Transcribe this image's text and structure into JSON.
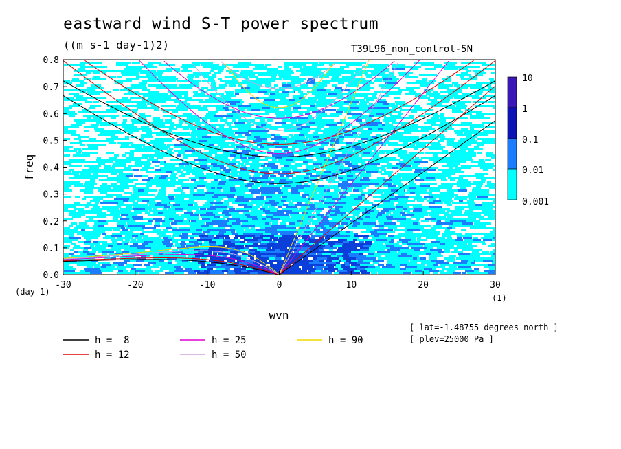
{
  "title": "eastward wind S-T power spectrum",
  "units": "((m s-1 day-1)2)",
  "run_label": "T39L96_non_control-5N",
  "notes": [
    "[ lat=-1.48755 degrees_north ]",
    "[ plev=25000 Pa ]"
  ],
  "chart_data": {
    "type": "heatmap",
    "xlabel": "wvn",
    "ylabel": "freq",
    "x_unit": "(1)",
    "y_unit": "(day-1)",
    "xlim": [
      -30,
      30
    ],
    "ylim": [
      0,
      0.8
    ],
    "xticks": [
      -30,
      -20,
      -10,
      0,
      10,
      20,
      30
    ],
    "yticks": [
      0.0,
      0.1,
      0.2,
      0.3,
      0.4,
      0.5,
      0.6,
      0.7,
      0.8
    ],
    "xtick_labels": [
      "-30",
      "-20",
      "-10",
      "0",
      "10",
      "20",
      "30"
    ],
    "ytick_labels": [
      "0.0",
      "0.1",
      "0.2",
      "0.3",
      "0.4",
      "0.5",
      "0.6",
      "0.7",
      "0.8"
    ],
    "colorbar": {
      "levels": [
        "0.001",
        "0.01",
        "0.1",
        "1",
        "10"
      ],
      "colors": [
        "#00ffff",
        "#1a7dff",
        "#0a40d9",
        "#0a14b4",
        "#3a18b8"
      ]
    },
    "dispersion_curves": [
      {
        "label": "h =  8",
        "h": 8,
        "color": "#000000"
      },
      {
        "label": "h = 12",
        "h": 12,
        "color": "#e00000"
      },
      {
        "label": "h = 25",
        "h": 25,
        "color": "#e000d0"
      },
      {
        "label": "h = 50",
        "h": 50,
        "color": "#d0a0e0"
      },
      {
        "label": "h = 90",
        "h": 90,
        "color": "#f0d800"
      }
    ],
    "legend_placement": "bottom"
  }
}
